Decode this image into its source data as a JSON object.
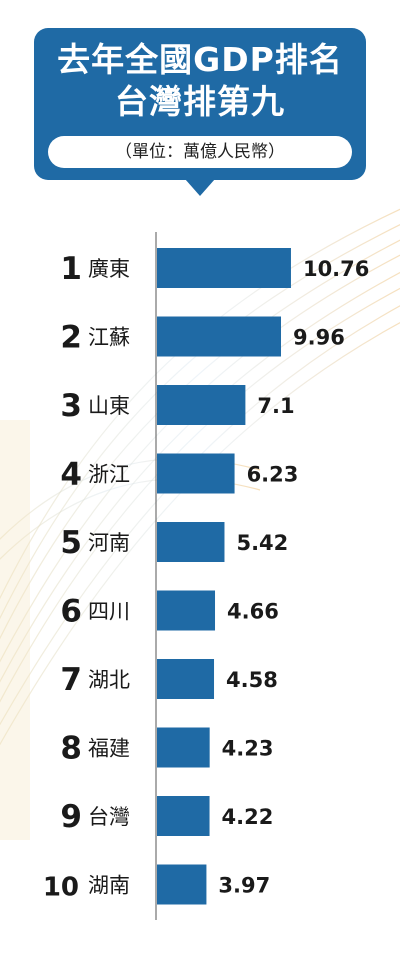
{
  "header": {
    "title_line1": "去年全國GDP排名",
    "title_line2": "台灣排第九",
    "unit": "（單位：萬億人民幣）"
  },
  "colors": {
    "accent": "#1f6aa5",
    "bar": "#1f6aa5",
    "text": "#222222"
  },
  "chart_data": {
    "type": "bar",
    "orientation": "horizontal",
    "ranks": [
      "1",
      "2",
      "3",
      "4",
      "5",
      "6",
      "7",
      "8",
      "9",
      "10"
    ],
    "categories": [
      "廣東",
      "江蘇",
      "山東",
      "浙江",
      "河南",
      "四川",
      "湖北",
      "福建",
      "台灣",
      "湖南"
    ],
    "values": [
      10.76,
      9.96,
      7.1,
      6.23,
      5.42,
      4.66,
      4.58,
      4.23,
      4.22,
      3.97
    ],
    "value_labels": [
      "10.76",
      "9.96",
      "7.1",
      "6.23",
      "5.42",
      "4.66",
      "4.58",
      "4.23",
      "4.22",
      "3.97"
    ],
    "title": "去年全國GDP排名 台灣排第九",
    "unit": "萬億人民幣",
    "grid": false,
    "legend": false
  }
}
